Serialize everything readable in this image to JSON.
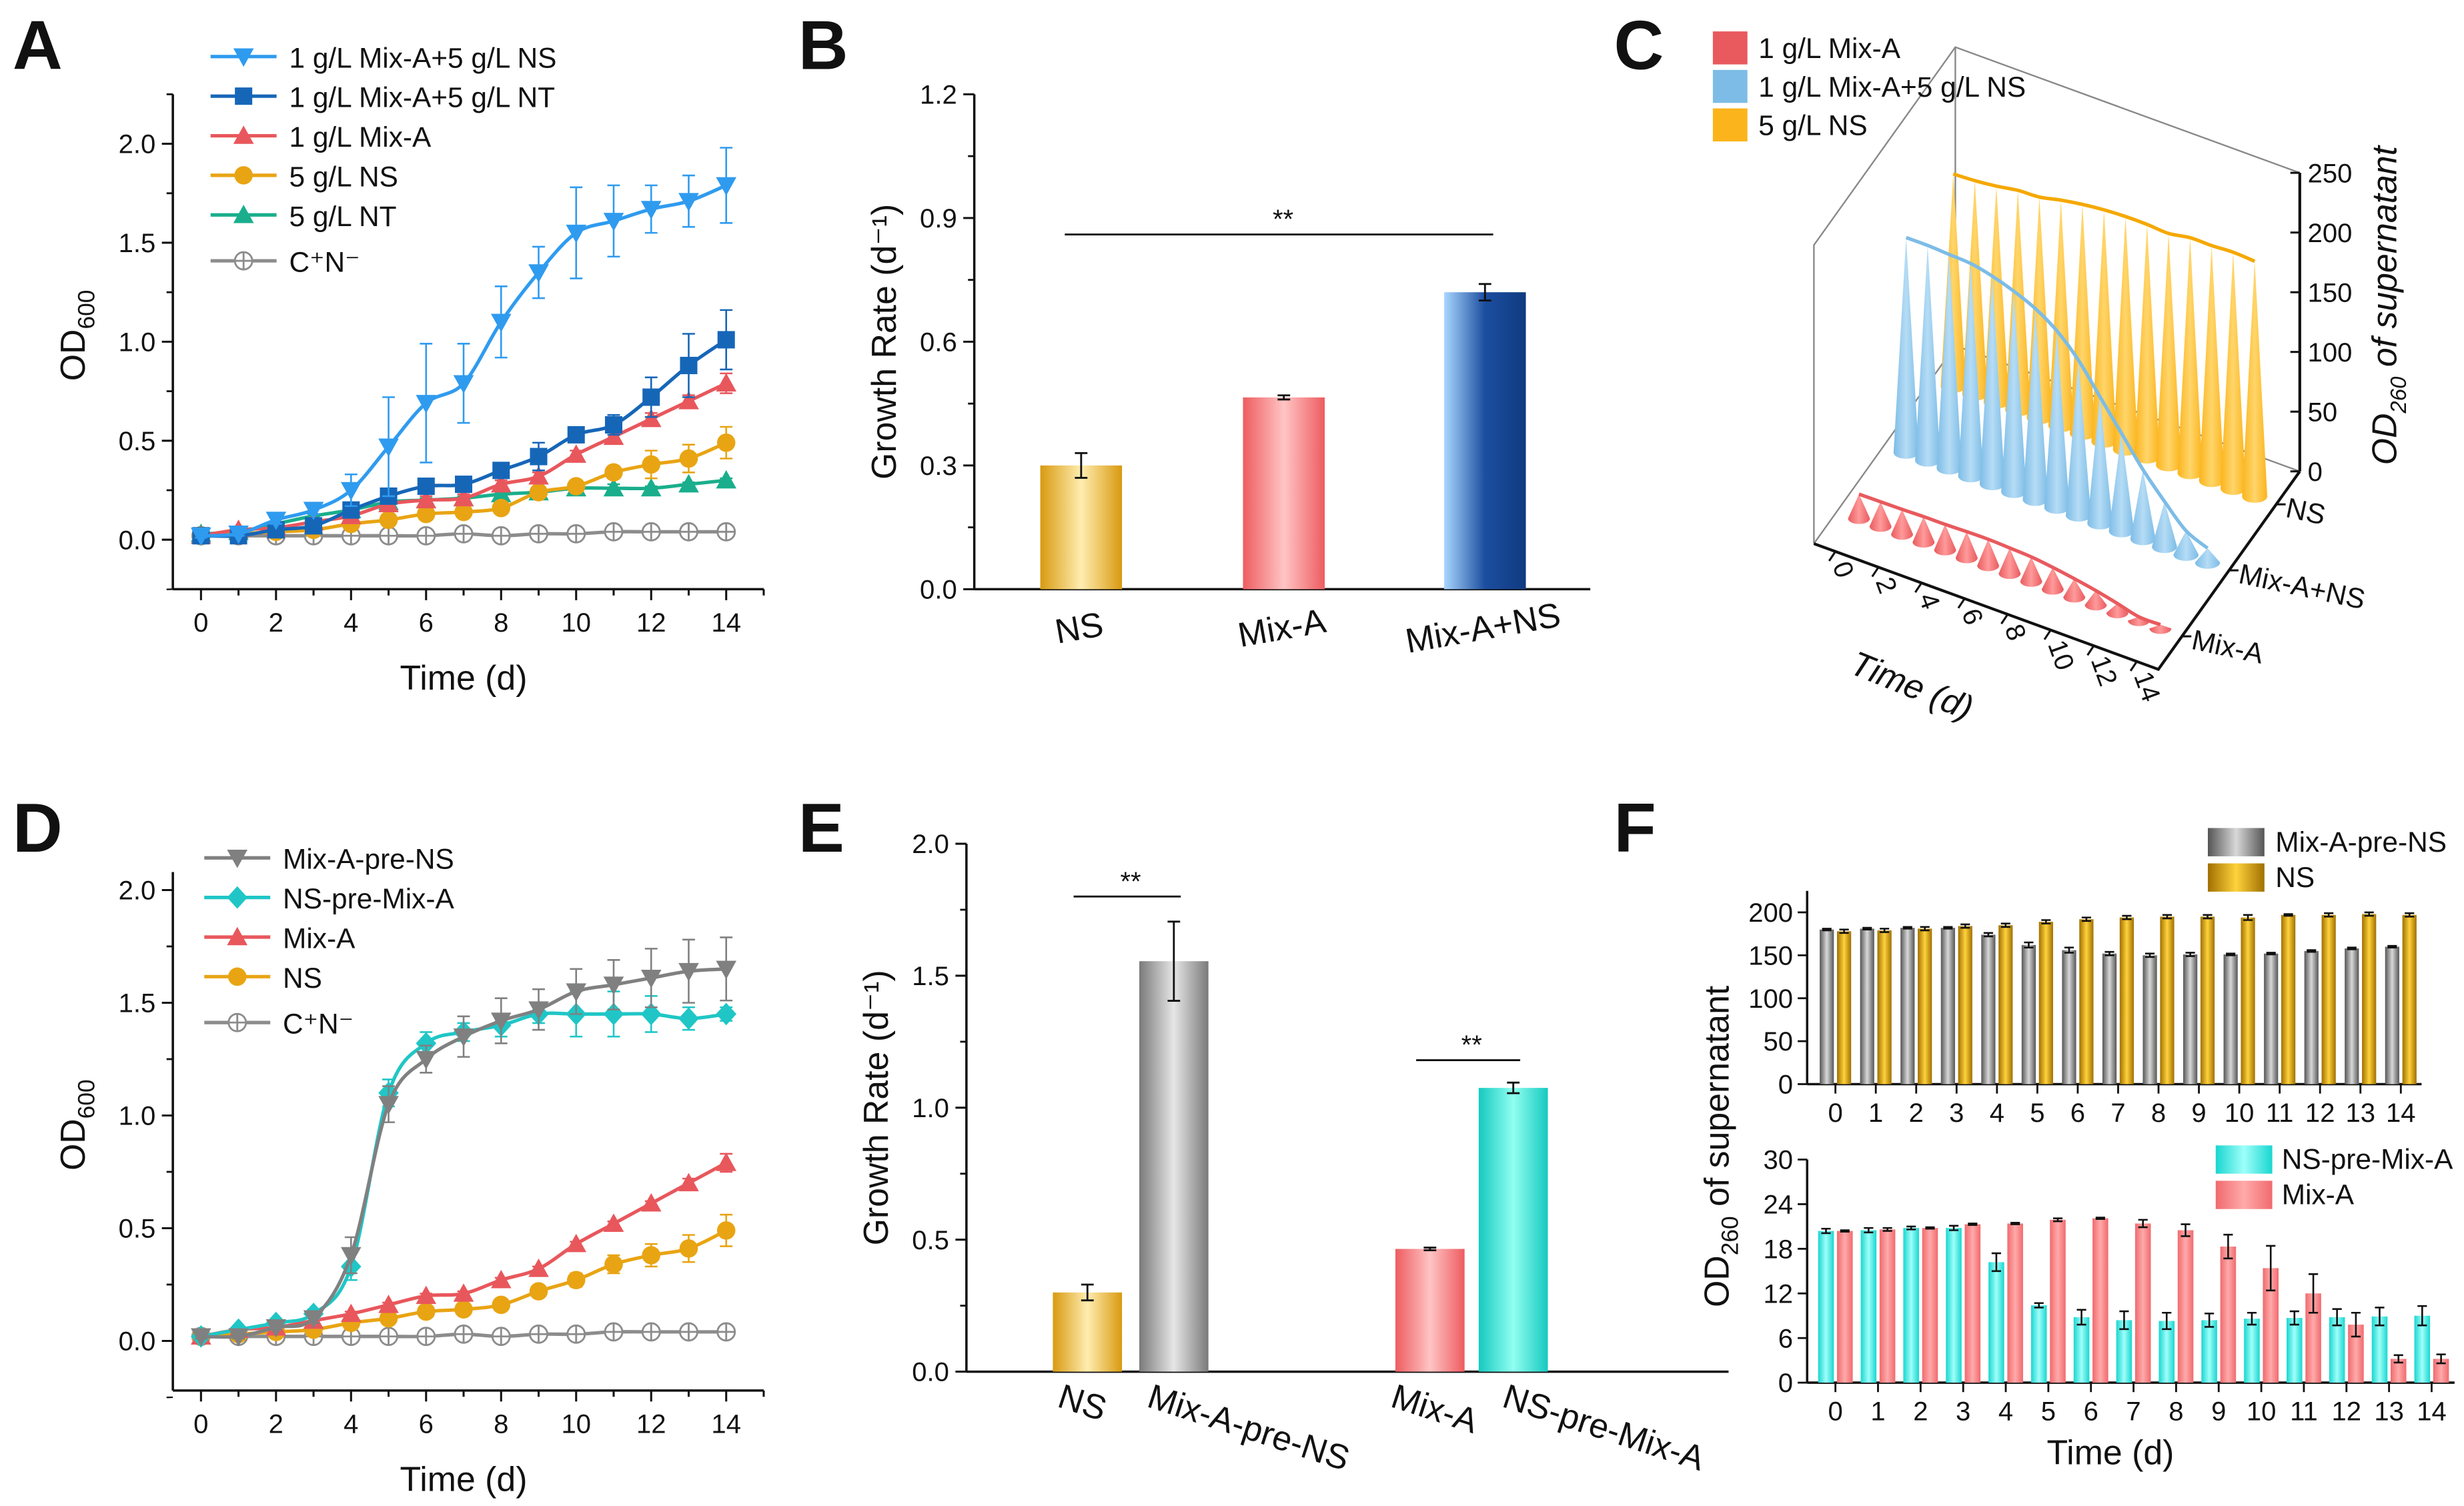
{
  "panel_labels": [
    "A",
    "B",
    "C",
    "D",
    "E",
    "F"
  ],
  "chart_data": [
    {
      "id": "A",
      "type": "line",
      "xlabel": "Time (d)",
      "ylabel_main": "OD",
      "ylabel_sub": "600",
      "xlim": [
        -0.75,
        15
      ],
      "ylim": [
        -0.25,
        2.25
      ],
      "xticks": [
        0,
        2,
        4,
        6,
        8,
        10,
        12,
        14
      ],
      "yticks": [
        "0.0",
        "0.5",
        "1.0",
        "1.5",
        "2.0"
      ],
      "legend_position": "top-left",
      "x": [
        0,
        1,
        2,
        3,
        4,
        5,
        6,
        7,
        8,
        9,
        10,
        11,
        12,
        13,
        14
      ],
      "series": [
        {
          "name": "1 g/L Mix-A+5 g/L NS",
          "color": "#2f9bef",
          "marker": "triangle-down",
          "values": [
            0.02,
            0.03,
            0.1,
            0.15,
            0.25,
            0.47,
            0.69,
            0.79,
            1.1,
            1.35,
            1.55,
            1.61,
            1.67,
            1.71,
            1.79
          ],
          "errors": [
            0.01,
            0.01,
            0.02,
            0.02,
            0.08,
            0.25,
            0.3,
            0.2,
            0.18,
            0.13,
            0.23,
            0.18,
            0.12,
            0.13,
            0.19
          ]
        },
        {
          "name": "1 g/L Mix-A+5 g/L NT",
          "color": "#1666b8",
          "marker": "square",
          "values": [
            0.02,
            0.02,
            0.05,
            0.07,
            0.15,
            0.22,
            0.27,
            0.28,
            0.35,
            0.42,
            0.53,
            0.58,
            0.72,
            0.88,
            1.01
          ],
          "errors": [
            0.01,
            0.01,
            0.01,
            0.02,
            0.02,
            0.03,
            0.02,
            0.02,
            0.02,
            0.07,
            0.03,
            0.05,
            0.1,
            0.16,
            0.15
          ]
        },
        {
          "name": "1 g/L Mix-A",
          "color": "#e8575c",
          "marker": "triangle-up",
          "values": [
            0.02,
            0.05,
            0.06,
            0.09,
            0.12,
            0.18,
            0.2,
            0.21,
            0.28,
            0.32,
            0.43,
            0.52,
            0.61,
            0.7,
            0.79
          ],
          "errors": [
            0.01,
            0.01,
            0.01,
            0.01,
            0.02,
            0.02,
            0.02,
            0.02,
            0.02,
            0.02,
            0.02,
            0.03,
            0.03,
            0.03,
            0.05
          ]
        },
        {
          "name": "5 g/L NS",
          "color": "#e8a413",
          "marker": "circle",
          "values": [
            0.02,
            0.03,
            0.04,
            0.05,
            0.08,
            0.1,
            0.13,
            0.14,
            0.16,
            0.24,
            0.27,
            0.34,
            0.38,
            0.41,
            0.49
          ],
          "errors": [
            0.01,
            0.01,
            0.01,
            0.01,
            0.01,
            0.01,
            0.01,
            0.02,
            0.02,
            0.02,
            0.03,
            0.03,
            0.07,
            0.07,
            0.08
          ]
        },
        {
          "name": "5 g/L NT",
          "color": "#1aae8c",
          "marker": "triangle-up",
          "values": [
            0.03,
            0.04,
            0.08,
            0.12,
            0.15,
            0.19,
            0.2,
            0.21,
            0.23,
            0.24,
            0.26,
            0.26,
            0.26,
            0.28,
            0.3
          ],
          "errors": [
            0.01,
            0.01,
            0.01,
            0.01,
            0.01,
            0.01,
            0.01,
            0.01,
            0.01,
            0.01,
            0.01,
            0.02,
            0.01,
            0.01,
            0.01
          ]
        },
        {
          "name": "C⁺N⁻",
          "color": "#8c8c8c",
          "marker": "circle-plus",
          "values": [
            0.02,
            0.02,
            0.02,
            0.02,
            0.02,
            0.02,
            0.02,
            0.03,
            0.02,
            0.03,
            0.03,
            0.04,
            0.04,
            0.04,
            0.04
          ],
          "errors": [
            0.005,
            0.005,
            0.005,
            0.005,
            0.005,
            0.005,
            0.005,
            0.005,
            0.005,
            0.005,
            0.005,
            0.005,
            0.005,
            0.005,
            0.005
          ]
        }
      ]
    },
    {
      "id": "B",
      "type": "bar",
      "ylabel": "Growth Rate (d⁻¹)",
      "ylim": [
        0,
        1.2
      ],
      "yticks": [
        "0.0",
        "0.3",
        "0.6",
        "0.9",
        "1.2"
      ],
      "categories": [
        "NS",
        "Mix-A",
        "Mix-A+NS"
      ],
      "values": [
        0.3,
        0.465,
        0.72
      ],
      "errors": [
        0.03,
        0.005,
        0.02
      ],
      "colors": [
        "#e6a514",
        "#f0676b",
        "#3b7bd0"
      ],
      "annotations": [
        {
          "text": "**",
          "from": "NS",
          "to": "Mix-A+NS",
          "y": 0.86
        }
      ]
    },
    {
      "id": "C",
      "type": "bar3d",
      "xlabel": "Time (d)",
      "zlabel_main": "OD",
      "zlabel_sub": "260",
      "zlabel_rest": " of supernatant",
      "zlim": [
        0,
        250
      ],
      "zticks": [
        "0",
        "50",
        "100",
        "150",
        "200",
        "250"
      ],
      "xticks": [
        "0",
        "2",
        "4",
        "6",
        "8",
        "10",
        "12",
        "14"
      ],
      "categories": [
        "Mix-A",
        "Mix-A+NS",
        "NS"
      ],
      "legend": [
        {
          "name": "1 g/L Mix-A",
          "color": "#e85a5e"
        },
        {
          "name": "1 g/L Mix-A+5 g/L NS",
          "color": "#7dbce6"
        },
        {
          "name": "5 g/L NS",
          "color": "#fbb41c"
        }
      ],
      "x": [
        0,
        1,
        2,
        3,
        4,
        5,
        6,
        7,
        8,
        9,
        10,
        11,
        12,
        13,
        14
      ],
      "series": [
        {
          "category": "Mix-A",
          "values": [
            20.4,
            20.6,
            20.8,
            21.3,
            21.4,
            21.9,
            22.1,
            21.4,
            20.5,
            18.3,
            15.4,
            12.0,
            7.8,
            3.2,
            3.2
          ]
        },
        {
          "category": "Mix-A+NS",
          "values": [
            180,
            180,
            179,
            178,
            174,
            168,
            160,
            148,
            130,
            106,
            82,
            58,
            38,
            20,
            12
          ]
        },
        {
          "category": "NS",
          "values": [
            178,
            179,
            181,
            184,
            185,
            189,
            192,
            194,
            195,
            195,
            194,
            197,
            197,
            198,
            197
          ]
        }
      ]
    },
    {
      "id": "D",
      "type": "line",
      "xlabel": "Time (d)",
      "ylabel_main": "OD",
      "ylabel_sub": "600",
      "xlim": [
        -0.75,
        15
      ],
      "ylim": [
        -0.22,
        2.08
      ],
      "xticks": [
        0,
        2,
        4,
        6,
        8,
        10,
        12,
        14
      ],
      "yticks": [
        "0.0",
        "0.5",
        "1.0",
        "1.5",
        "2.0"
      ],
      "legend_position": "top-left",
      "x": [
        0,
        1,
        2,
        3,
        4,
        5,
        6,
        7,
        8,
        9,
        10,
        11,
        12,
        13,
        14
      ],
      "series": [
        {
          "name": "Mix-A-pre-NS",
          "color": "#808080",
          "marker": "triangle-down",
          "values": [
            0.02,
            0.02,
            0.06,
            0.1,
            0.38,
            1.05,
            1.25,
            1.35,
            1.42,
            1.47,
            1.55,
            1.58,
            1.61,
            1.64,
            1.65
          ],
          "errors": [
            0.01,
            0.01,
            0.01,
            0.02,
            0.08,
            0.08,
            0.06,
            0.09,
            0.1,
            0.09,
            0.1,
            0.11,
            0.13,
            0.14,
            0.14
          ]
        },
        {
          "name": "NS-pre-Mix-A",
          "color": "#20c6c6",
          "marker": "diamond",
          "values": [
            0.02,
            0.05,
            0.08,
            0.12,
            0.33,
            1.1,
            1.32,
            1.37,
            1.4,
            1.45,
            1.45,
            1.45,
            1.45,
            1.43,
            1.45
          ],
          "errors": [
            0.01,
            0.01,
            0.01,
            0.02,
            0.06,
            0.06,
            0.05,
            0.04,
            0.05,
            0.04,
            0.1,
            0.1,
            0.08,
            0.05,
            0.03
          ]
        },
        {
          "name": "Mix-A",
          "color": "#e8575c",
          "marker": "triangle-up",
          "values": [
            0.02,
            0.05,
            0.06,
            0.09,
            0.12,
            0.16,
            0.2,
            0.21,
            0.27,
            0.32,
            0.43,
            0.52,
            0.61,
            0.7,
            0.79
          ],
          "errors": [
            0.01,
            0.01,
            0.01,
            0.01,
            0.01,
            0.01,
            0.01,
            0.01,
            0.01,
            0.01,
            0.01,
            0.01,
            0.01,
            0.02,
            0.04
          ]
        },
        {
          "name": "NS",
          "color": "#e8a413",
          "marker": "circle",
          "values": [
            0.02,
            0.03,
            0.04,
            0.05,
            0.08,
            0.1,
            0.13,
            0.14,
            0.16,
            0.22,
            0.27,
            0.34,
            0.38,
            0.41,
            0.49
          ],
          "errors": [
            0.01,
            0.01,
            0.01,
            0.01,
            0.01,
            0.01,
            0.02,
            0.02,
            0.02,
            0.02,
            0.03,
            0.04,
            0.05,
            0.06,
            0.07
          ]
        },
        {
          "name": "C⁺N⁻",
          "color": "#8c8c8c",
          "marker": "circle-plus",
          "values": [
            0.02,
            0.02,
            0.02,
            0.02,
            0.02,
            0.02,
            0.02,
            0.03,
            0.02,
            0.03,
            0.03,
            0.04,
            0.04,
            0.04,
            0.04
          ],
          "errors": [
            0.005,
            0.005,
            0.005,
            0.005,
            0.005,
            0.005,
            0.005,
            0.005,
            0.005,
            0.005,
            0.005,
            0.005,
            0.005,
            0.005,
            0.005
          ]
        }
      ]
    },
    {
      "id": "E",
      "type": "bar",
      "ylabel": "Growth Rate (d⁻¹)",
      "ylim": [
        0,
        2.0
      ],
      "yticks": [
        "0.0",
        "0.5",
        "1.0",
        "1.5",
        "2.0"
      ],
      "categories": [
        "NS",
        "Mix-A-pre-NS",
        "Mix-A",
        "NS-pre-Mix-A"
      ],
      "values": [
        0.3,
        1.555,
        0.465,
        1.075
      ],
      "errors": [
        0.03,
        0.15,
        0.005,
        0.02
      ],
      "colors": [
        "#e6a514",
        "#8f8f8f",
        "#f0676b",
        "#1ad8c8"
      ],
      "annotations": [
        {
          "text": "**",
          "from": "NS",
          "to": "Mix-A-pre-NS",
          "y": 1.8
        },
        {
          "text": "**",
          "from": "Mix-A",
          "to": "NS-pre-Mix-A",
          "y": 1.18
        }
      ]
    },
    {
      "id": "F",
      "type": "bar",
      "xlabel": "Time (d)",
      "ylabel_main": "OD",
      "ylabel_sub": "260",
      "ylabel_rest": " of supernatant",
      "subplots": [
        {
          "ylim": [
            0,
            225
          ],
          "yticks": [
            "0",
            "50",
            "100",
            "150",
            "200"
          ],
          "categories": [
            "0",
            "1",
            "2",
            "3",
            "4",
            "5",
            "6",
            "7",
            "8",
            "9",
            "10",
            "11",
            "12",
            "13",
            "14"
          ],
          "series": [
            {
              "name": "Mix-A-pre-NS",
              "color": "#9a9a9a",
              "values": [
                180,
                181,
                182,
                182,
                174,
                162,
                156,
                152,
                150,
                151,
                151,
                152,
                155,
                158,
                160
              ],
              "errors": [
                1,
                1,
                1,
                1,
                2,
                3,
                3,
                2,
                2,
                2,
                1,
                1,
                1,
                1,
                1
              ]
            },
            {
              "name": "NS",
              "color": "#f2b415",
              "values": [
                178,
                179,
                181,
                184,
                185,
                189,
                192,
                194,
                195,
                195,
                194,
                197,
                197,
                198,
                197
              ],
              "errors": [
                2,
                2,
                2,
                2,
                2,
                2,
                2,
                2,
                2,
                2,
                3,
                1,
                2,
                2,
                2
              ]
            }
          ]
        },
        {
          "ylim": [
            0,
            30
          ],
          "yticks": [
            "0",
            "6",
            "12",
            "18",
            "24",
            "30"
          ],
          "categories": [
            "0",
            "1",
            "2",
            "3",
            "4",
            "5",
            "6",
            "7",
            "8",
            "9",
            "10",
            "11",
            "12",
            "13",
            "14"
          ],
          "series": [
            {
              "name": "NS-pre-Mix-A",
              "color": "#2ee6e0",
              "values": [
                20.4,
                20.5,
                20.8,
                20.8,
                16.2,
                10.4,
                8.8,
                8.4,
                8.3,
                8.4,
                8.6,
                8.7,
                8.8,
                8.9,
                9.0
              ],
              "errors": [
                0.3,
                0.3,
                0.2,
                0.3,
                1.2,
                0.3,
                1.0,
                1.2,
                1.1,
                0.9,
                0.8,
                0.9,
                1.1,
                1.2,
                1.3
              ]
            },
            {
              "name": "Mix-A",
              "color": "#f5797c",
              "values": [
                20.4,
                20.6,
                20.8,
                21.3,
                21.4,
                21.9,
                22.1,
                21.4,
                20.5,
                18.3,
                15.4,
                12.0,
                7.8,
                3.2,
                3.2
              ],
              "errors": [
                0.1,
                0.2,
                0.1,
                0.1,
                0.1,
                0.2,
                0.1,
                0.5,
                0.8,
                1.6,
                3.0,
                2.6,
                1.6,
                0.5,
                0.6
              ]
            }
          ]
        }
      ]
    }
  ]
}
